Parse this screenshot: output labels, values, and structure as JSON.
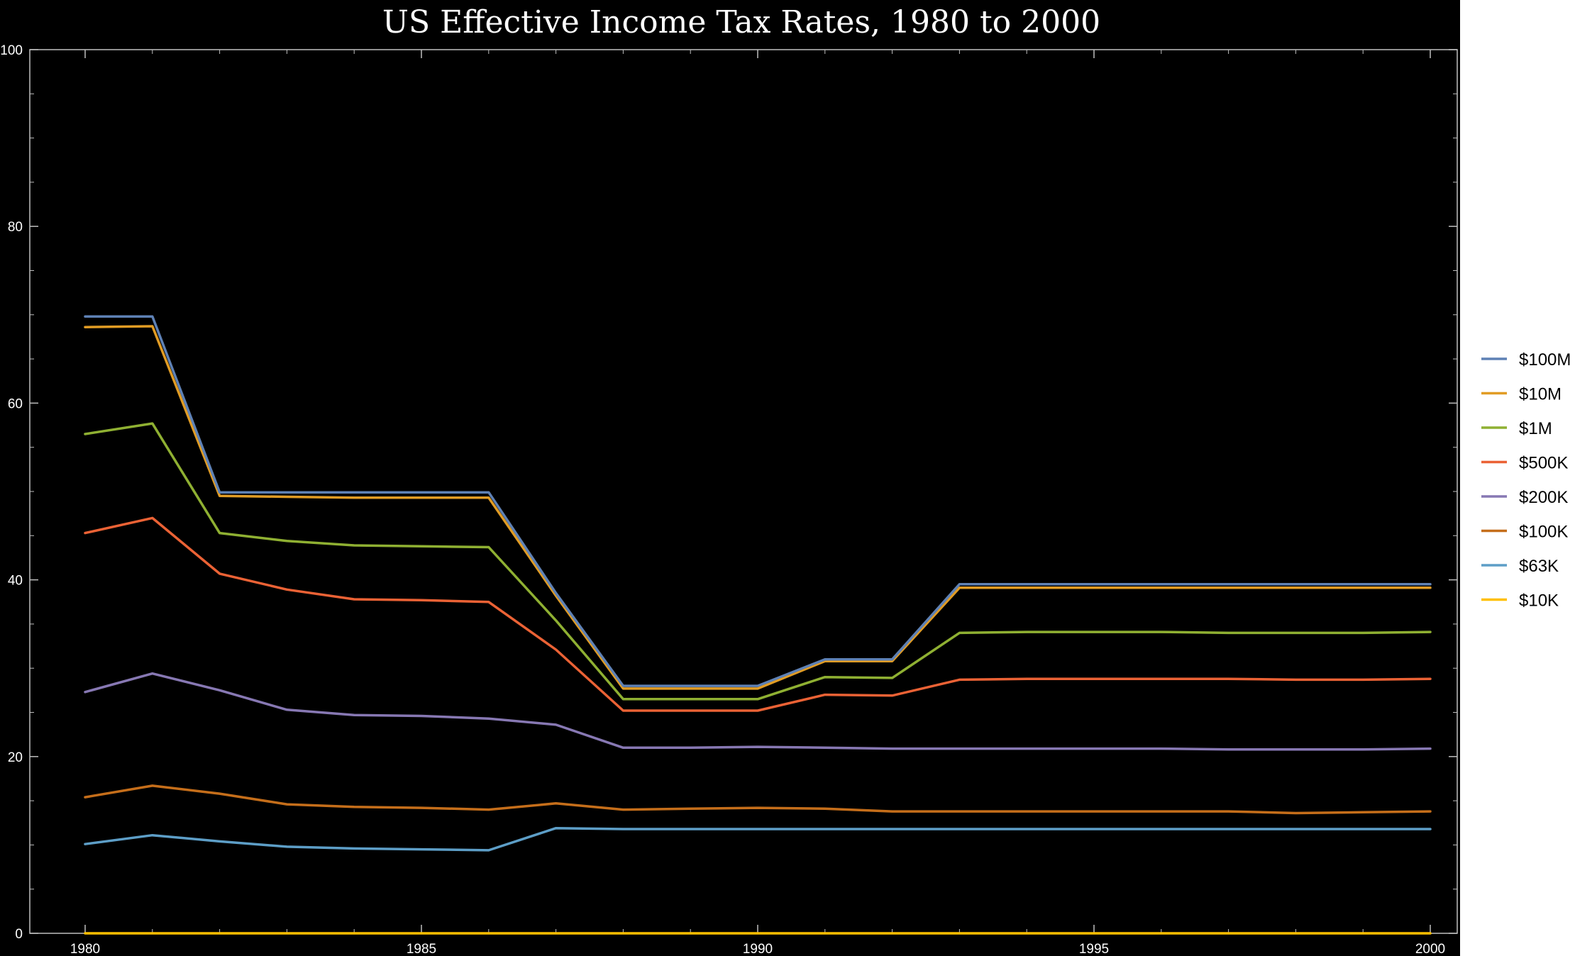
{
  "chart_data": {
    "type": "line",
    "title": "US Effective Income Tax Rates, 1980 to 2000",
    "xlabel": "",
    "ylabel": "",
    "xlim": [
      1980,
      2000
    ],
    "ylim": [
      0,
      100
    ],
    "x_ticks": [
      "1980",
      "1985",
      "1990",
      "1995",
      "2000"
    ],
    "y_ticks": [
      "0",
      "20",
      "40",
      "60",
      "80",
      "100"
    ],
    "x_tick_values": [
      1980,
      1985,
      1990,
      1995,
      2000
    ],
    "y_tick_values": [
      0,
      20,
      40,
      60,
      80,
      100
    ],
    "grid": false,
    "background": "#000000",
    "legend_position": "right",
    "x": [
      1980,
      1981,
      1982,
      1983,
      1984,
      1985,
      1986,
      1987,
      1988,
      1989,
      1990,
      1991,
      1992,
      1993,
      1994,
      1995,
      1996,
      1997,
      1998,
      1999,
      2000
    ],
    "series": [
      {
        "name": "$100M",
        "color": "#5E81B5",
        "values": [
          69.8,
          69.8,
          49.9,
          49.9,
          49.9,
          49.9,
          49.9,
          38.5,
          28.0,
          28.0,
          28.0,
          31.0,
          31.0,
          39.5,
          39.5,
          39.5,
          39.5,
          39.5,
          39.5,
          39.5,
          39.5
        ]
      },
      {
        "name": "$10M",
        "color": "#E19C24",
        "values": [
          68.6,
          68.7,
          49.5,
          49.4,
          49.3,
          49.3,
          49.3,
          38.2,
          27.7,
          27.7,
          27.7,
          30.8,
          30.8,
          39.1,
          39.1,
          39.1,
          39.1,
          39.1,
          39.1,
          39.1,
          39.1
        ]
      },
      {
        "name": "$1M",
        "color": "#8FB032",
        "values": [
          56.5,
          57.7,
          45.3,
          44.4,
          43.9,
          43.8,
          43.7,
          35.4,
          26.5,
          26.5,
          26.5,
          29.0,
          28.9,
          34.0,
          34.1,
          34.1,
          34.1,
          34.0,
          34.0,
          34.0,
          34.1
        ]
      },
      {
        "name": "$500K",
        "color": "#EB6235",
        "values": [
          45.3,
          47.0,
          40.7,
          38.9,
          37.8,
          37.7,
          37.5,
          32.1,
          25.2,
          25.2,
          25.2,
          27.0,
          26.9,
          28.7,
          28.8,
          28.8,
          28.8,
          28.8,
          28.7,
          28.7,
          28.8
        ]
      },
      {
        "name": "$200K",
        "color": "#8778B3",
        "values": [
          27.3,
          29.4,
          27.5,
          25.3,
          24.7,
          24.6,
          24.3,
          23.6,
          21.0,
          21.0,
          21.1,
          21.0,
          20.9,
          20.9,
          20.9,
          20.9,
          20.9,
          20.8,
          20.8,
          20.8,
          20.9
        ]
      },
      {
        "name": "$100K",
        "color": "#C56E1A",
        "values": [
          15.4,
          16.7,
          15.8,
          14.6,
          14.3,
          14.2,
          14.0,
          14.7,
          14.0,
          14.1,
          14.2,
          14.1,
          13.8,
          13.8,
          13.8,
          13.8,
          13.8,
          13.8,
          13.6,
          13.7,
          13.8
        ]
      },
      {
        "name": "$63K",
        "color": "#5D9EC7",
        "values": [
          10.1,
          11.1,
          10.4,
          9.8,
          9.6,
          9.5,
          9.4,
          11.9,
          11.8,
          11.8,
          11.8,
          11.8,
          11.8,
          11.8,
          11.8,
          11.8,
          11.8,
          11.8,
          11.8,
          11.8,
          11.8
        ]
      },
      {
        "name": "$10K",
        "color": "#FFBF00",
        "values": [
          0,
          0,
          0,
          0,
          0,
          0,
          0,
          0,
          0,
          0,
          0,
          0,
          0,
          0,
          0,
          0,
          0,
          0,
          0,
          0,
          0
        ]
      }
    ]
  }
}
